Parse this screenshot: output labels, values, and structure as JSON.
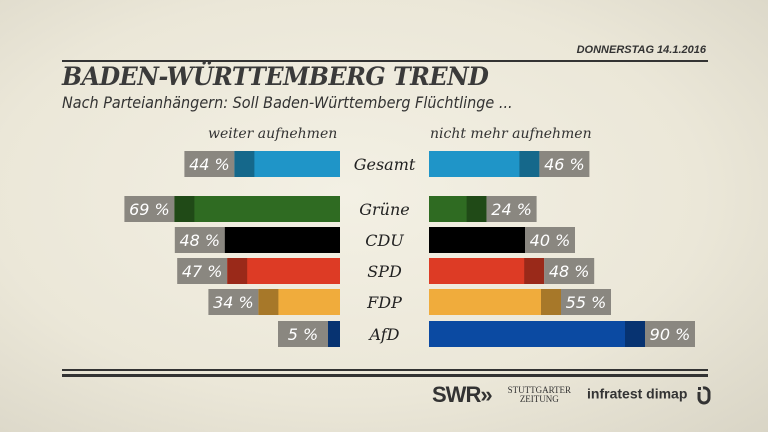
{
  "header": {
    "date": "DONNERSTAG  14.1.2016",
    "title": "BADEN-WÜRTTEMBERG TREND",
    "subtitle": "Nach Parteianhängern: Soll Baden-Württemberg Flüchtlinge ..."
  },
  "chart_data": {
    "type": "bar",
    "orientation": "diverging-horizontal",
    "categories": [
      "Gesamt",
      "Grüne",
      "CDU",
      "SPD",
      "FDP",
      "AfD"
    ],
    "series": [
      {
        "name": "weiter aufnehmen",
        "values": [
          44,
          69,
          48,
          47,
          34,
          5
        ],
        "side": "left"
      },
      {
        "name": "nicht mehr aufnehmen",
        "values": [
          46,
          24,
          40,
          48,
          55,
          90
        ],
        "side": "right"
      }
    ],
    "colors": [
      "#1f95c8",
      "#2f6b22",
      "#000000",
      "#dd3b25",
      "#f0ac3c",
      "#0b4aa2"
    ],
    "label_bg": "#8a8780",
    "unit": " %"
  },
  "footer": {
    "swr": "SWR",
    "swr_arrows": "»",
    "stz_line1": "STUTTGARTER",
    "stz_line2": "ZEITUNG",
    "infratest": "infratest dimap",
    "infratest_icon": "infratest-dimap-logo"
  }
}
